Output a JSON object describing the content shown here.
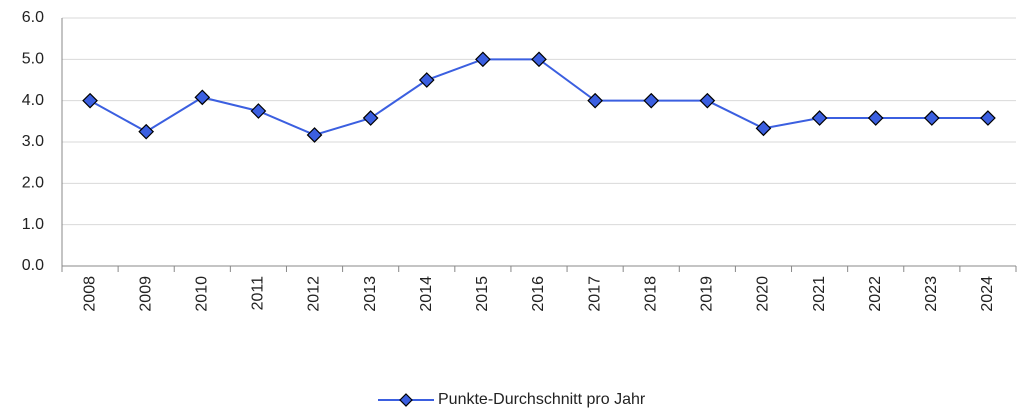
{
  "chart_data": {
    "type": "line",
    "categories": [
      "2008",
      "2009",
      "2010",
      "2011",
      "2012",
      "2013",
      "2014",
      "2015",
      "2016",
      "2017",
      "2018",
      "2019",
      "2020",
      "2021",
      "2022",
      "2023",
      "2024"
    ],
    "series": [
      {
        "name": "Punkte-Durchschnitt pro Jahr",
        "color": "#3b5fe0",
        "values": [
          4.0,
          3.25,
          4.08,
          3.75,
          3.17,
          3.58,
          4.5,
          5.0,
          5.0,
          4.0,
          4.0,
          4.0,
          3.33,
          3.58,
          3.58,
          3.58,
          3.58
        ]
      }
    ],
    "ylim": [
      0,
      6
    ],
    "yticks": [
      {
        "value": 0,
        "label": "0.0"
      },
      {
        "value": 1,
        "label": "1.0"
      },
      {
        "value": 2,
        "label": "2.0"
      },
      {
        "value": 3,
        "label": "3.0"
      },
      {
        "value": 4,
        "label": "4.0"
      },
      {
        "value": 5,
        "label": "5.0"
      },
      {
        "value": 6,
        "label": "6.0"
      }
    ],
    "grid": true,
    "legend": "bottom"
  }
}
